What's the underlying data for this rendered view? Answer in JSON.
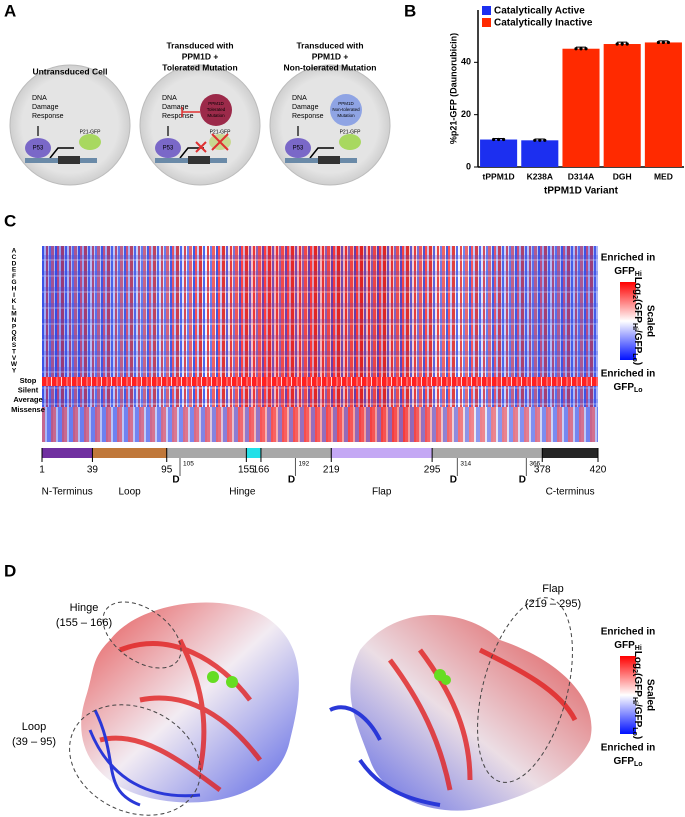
{
  "panel_labels": [
    "A",
    "B",
    "C",
    "D"
  ],
  "panel_a": {
    "cells": [
      {
        "title": [
          "Untransduced Cell"
        ],
        "title_color": "#000000",
        "response": [
          "DNA",
          "Damage",
          "Response"
        ],
        "p53": "P53",
        "reporter": "P21-GFP"
      },
      {
        "title": [
          "Transduced with",
          "PPM1D +",
          "Tolerated Mutation"
        ],
        "title_color": "#e0302a",
        "response": [
          "DNA",
          "Damage",
          "Response"
        ],
        "p53": "P53",
        "reporter": "P21-GFP",
        "mutant": [
          "PPM1D",
          "Tolerated",
          "Mutation"
        ],
        "mutant_color": "#9c2a4a",
        "blocked": true
      },
      {
        "title": [
          "Transduced with",
          "PPM1D +",
          "Non-tolerated Mutation"
        ],
        "title_color": "#4a78c4",
        "response": [
          "DNA",
          "Damage",
          "Response"
        ],
        "p53": "P53",
        "reporter": "P21-GFP",
        "mutant": [
          "PPM1D",
          "Non-tolerated",
          "Mutation"
        ],
        "mutant_color": "#8fa4e4",
        "blocked": false
      }
    ]
  },
  "chart_data": {
    "type": "bar",
    "ylabel": "%p21-GFP (Daunorubicin)",
    "xlabel": "tPPM1D Variant",
    "categories": [
      "tPPM1D",
      "K238A",
      "D314A",
      "DGH",
      "MED"
    ],
    "values": [
      10.5,
      10.2,
      45.2,
      47,
      47.6
    ],
    "errors": [
      0.4,
      0.5,
      0.6,
      0.7,
      0.6
    ],
    "colors": [
      "#1c2ff0",
      "#1c2ff0",
      "#ff2a00",
      "#ff2a00",
      "#ff2a00"
    ],
    "legend": [
      {
        "name": "Catalytically Active",
        "color": "#1c2ff0"
      },
      {
        "name": "Catalytically Inactive",
        "color": "#ff2a00"
      }
    ],
    "ylim": [
      0,
      60
    ],
    "yticks": [
      0,
      20,
      40
    ]
  },
  "panel_c": {
    "rows": [
      "A",
      "C",
      "D",
      "E",
      "F",
      "G",
      "H",
      "I",
      "K",
      "L",
      "M",
      "N",
      "P",
      "Q",
      "R",
      "S",
      "T",
      "V",
      "W",
      "Y",
      "Stop",
      "Silent",
      "Average",
      "Missense"
    ],
    "xlim": [
      1,
      420
    ],
    "positions": [
      1,
      39,
      95,
      155,
      166,
      219,
      295,
      378,
      420
    ],
    "segments": [
      {
        "start": 1,
        "end": 39,
        "color": "#7030a0",
        "name": "N-Terminus"
      },
      {
        "start": 39,
        "end": 95,
        "color": "#c0783a",
        "name": "Loop"
      },
      {
        "start": 95,
        "end": 155,
        "color": "#a8a8a8"
      },
      {
        "start": 155,
        "end": 166,
        "color": "#22e0e8",
        "name": "Hinge"
      },
      {
        "start": 166,
        "end": 219,
        "color": "#a8a8a8"
      },
      {
        "start": 219,
        "end": 295,
        "color": "#c4a8f4",
        "name": "Flap"
      },
      {
        "start": 295,
        "end": 378,
        "color": "#a8a8a8"
      },
      {
        "start": 378,
        "end": 420,
        "color": "#262626",
        "name": "C-terminus"
      }
    ],
    "catalytic_sites": [
      {
        "position": 105,
        "label": "D"
      },
      {
        "position": 192,
        "label": "D"
      },
      {
        "position": 314,
        "label": "D"
      },
      {
        "position": 366,
        "label": "D"
      }
    ],
    "colorbar": {
      "top": [
        "Enriched in",
        "GFP",
        "Hi"
      ],
      "title": "Scaled",
      "formula": [
        "Log",
        "2",
        "(GFP",
        "Hi",
        "/GFP",
        "Lo",
        ")"
      ],
      "bottom": [
        "Enriched in",
        "GFP",
        "Lo"
      ]
    }
  },
  "panel_d": {
    "regions": [
      {
        "name": "Hinge",
        "range": "(155 – 166)"
      },
      {
        "name": "Loop",
        "range": "(39 – 95)"
      },
      {
        "name": "Flap",
        "range": "(219 – 295)"
      }
    ],
    "colorbar": {
      "top": [
        "Enriched in",
        "GFP",
        "Hi"
      ],
      "title": "Scaled",
      "formula": [
        "Log",
        "2",
        "(GFP",
        "Hi",
        "/GFP",
        "Lo",
        ")"
      ],
      "bottom": [
        "Enriched in",
        "GFP",
        "Lo"
      ]
    }
  }
}
